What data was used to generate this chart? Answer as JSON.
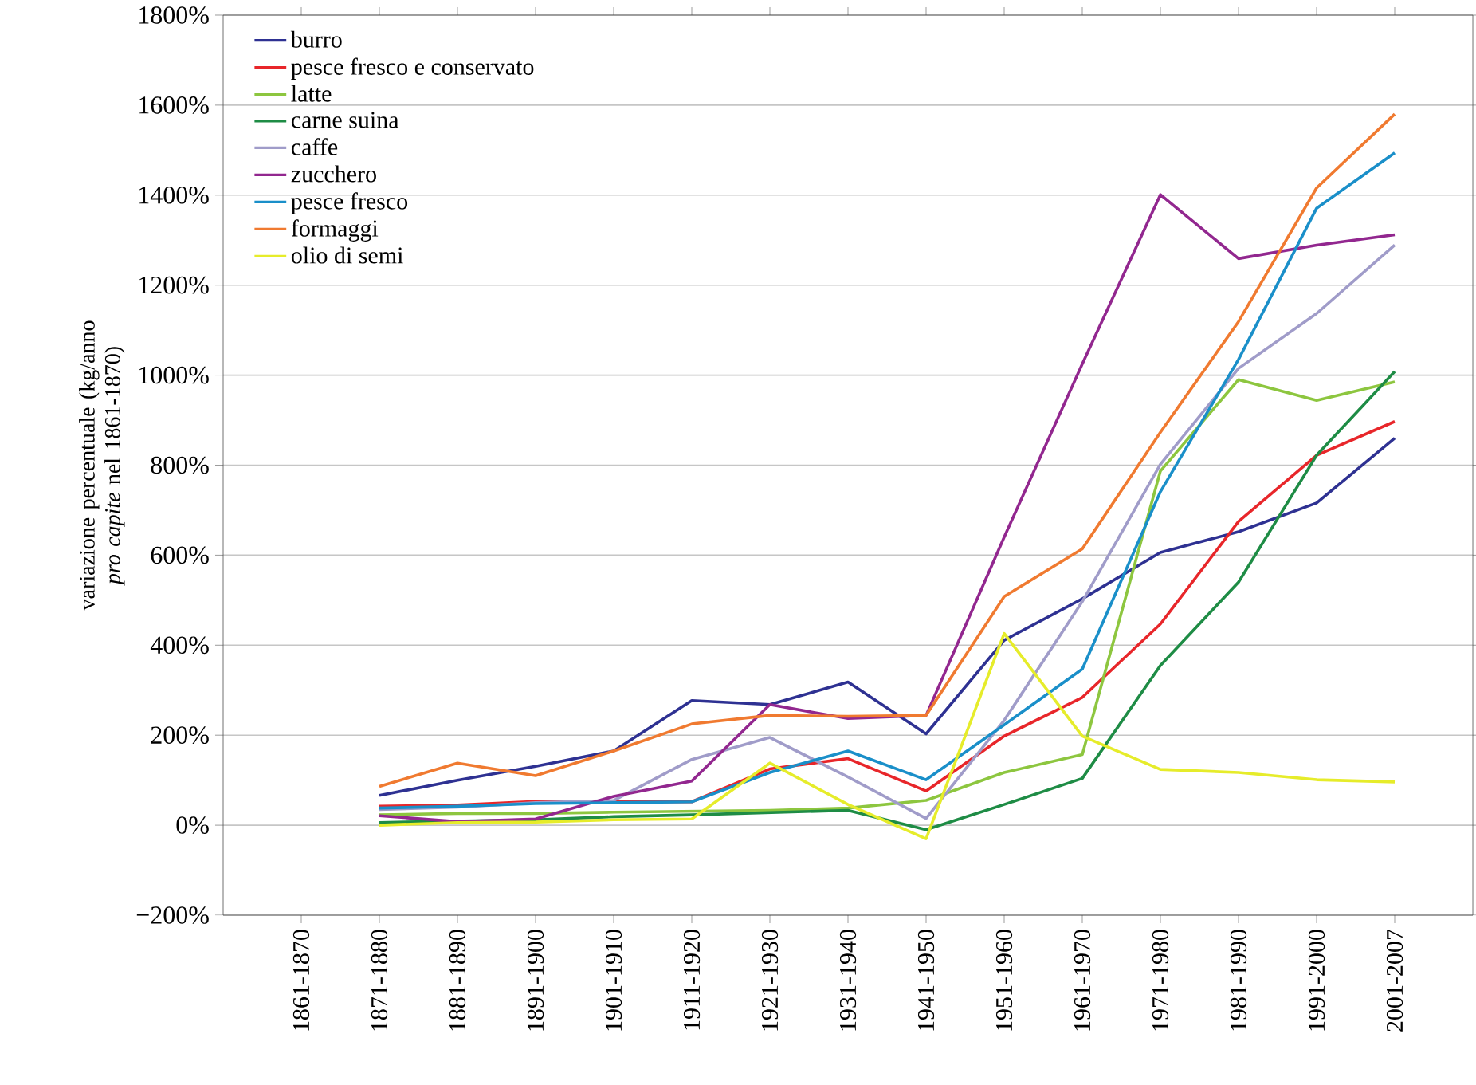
{
  "chart_data": {
    "type": "line",
    "ylabel": "variazione percentuale (kg/anno *pro capite* nel 1861-1870)",
    "categories": [
      "1861-1870",
      "1871-1880",
      "1881-1890",
      "1891-1900",
      "1901-1910",
      "1911-1920",
      "1921-1930",
      "1931-1940",
      "1941-1950",
      "1951-1960",
      "1961-1970",
      "1971-1980",
      "1981-1990",
      "1991-2000",
      "2001-2007"
    ],
    "ylim": [
      -200,
      1800
    ],
    "yticks": [
      {
        "value": -200,
        "label": "−200%"
      },
      {
        "value": 0,
        "label": "0%"
      },
      {
        "value": 200,
        "label": "200%"
      },
      {
        "value": 400,
        "label": "400%"
      },
      {
        "value": 600,
        "label": "600%"
      },
      {
        "value": 800,
        "label": "800%"
      },
      {
        "value": 1000,
        "label": "1000%"
      },
      {
        "value": 1200,
        "label": "1200%"
      },
      {
        "value": 1400,
        "label": "1400%"
      },
      {
        "value": 1600,
        "label": "1600%"
      },
      {
        "value": 1800,
        "label": "1800%"
      }
    ],
    "grid": "y",
    "legend": "top left",
    "marker": "none",
    "line_style": "solid",
    "series": [
      {
        "name": "burro",
        "color": "#2e3192",
        "values": [
          null,
          66,
          100,
          131,
          165,
          277,
          268,
          318,
          203,
          411,
          503,
          606,
          652,
          716,
          860
        ]
      },
      {
        "name": "pesce fresco e conservato",
        "color": "#e8262a",
        "values": [
          null,
          42,
          45,
          53,
          52,
          52,
          125,
          148,
          76,
          198,
          284,
          447,
          675,
          822,
          897
        ]
      },
      {
        "name": "latte",
        "color": "#8dc63f",
        "values": [
          null,
          23,
          26,
          26,
          29,
          31,
          33,
          38,
          55,
          117,
          157,
          787,
          990,
          944,
          985
        ]
      },
      {
        "name": "carne suina",
        "color": "#1e8c45",
        "values": [
          null,
          6,
          9,
          12,
          19,
          23,
          28,
          33,
          -10,
          46,
          104,
          355,
          540,
          822,
          1008
        ]
      },
      {
        "name": "caffe",
        "color": "#a09cc9",
        "values": [
          null,
          35,
          40,
          50,
          55,
          146,
          195,
          107,
          15,
          233,
          497,
          802,
          1015,
          1137,
          1289
        ]
      },
      {
        "name": "zucchero",
        "color": "#92278f",
        "values": [
          null,
          21,
          8,
          14,
          64,
          98,
          268,
          237,
          244,
          640,
          1025,
          1401,
          1259,
          1289,
          1312
        ]
      },
      {
        "name": "pesce fresco",
        "color": "#1a8fc9",
        "values": [
          null,
          38,
          42,
          48,
          50,
          52,
          117,
          165,
          101,
          223,
          347,
          741,
          1035,
          1371,
          1494
        ]
      },
      {
        "name": "formaggi",
        "color": "#f07a30",
        "values": [
          null,
          86,
          138,
          110,
          165,
          225,
          244,
          242,
          244,
          508,
          614,
          873,
          1119,
          1416,
          1580
        ]
      },
      {
        "name": "olio di semi",
        "color": "#e6ec2a",
        "values": [
          null,
          0,
          6,
          7,
          12,
          14,
          138,
          46,
          -30,
          426,
          198,
          124,
          117,
          101,
          96
        ]
      }
    ]
  }
}
